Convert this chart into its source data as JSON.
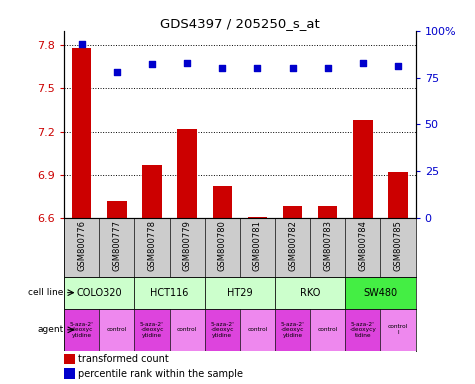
{
  "title": "GDS4397 / 205250_s_at",
  "samples": [
    "GSM800776",
    "GSM800777",
    "GSM800778",
    "GSM800779",
    "GSM800780",
    "GSM800781",
    "GSM800782",
    "GSM800783",
    "GSM800784",
    "GSM800785"
  ],
  "bar_values": [
    7.78,
    6.72,
    6.97,
    7.22,
    6.82,
    6.61,
    6.68,
    6.68,
    7.28,
    6.92
  ],
  "dot_values": [
    93,
    78,
    82,
    83,
    80,
    80,
    80,
    80,
    83,
    81
  ],
  "ylim_left": [
    6.6,
    7.9
  ],
  "ylim_right": [
    0,
    100
  ],
  "yticks_left": [
    6.6,
    6.9,
    7.2,
    7.5,
    7.8
  ],
  "yticks_right": [
    0,
    25,
    50,
    75,
    100
  ],
  "bar_color": "#cc0000",
  "dot_color": "#0000cc",
  "cell_lines": [
    {
      "label": "COLO320",
      "start": 0,
      "end": 2,
      "color": "#ccffcc"
    },
    {
      "label": "HCT116",
      "start": 2,
      "end": 4,
      "color": "#ccffcc"
    },
    {
      "label": "HT29",
      "start": 4,
      "end": 6,
      "color": "#ccffcc"
    },
    {
      "label": "RKO",
      "start": 6,
      "end": 8,
      "color": "#ccffcc"
    },
    {
      "label": "SW480",
      "start": 8,
      "end": 10,
      "color": "#44ee44"
    }
  ],
  "agents": [
    {
      "label": "5-aza-2'\n-deoxyc\nytidine",
      "start": 0,
      "end": 1,
      "color": "#dd44dd"
    },
    {
      "label": "control",
      "start": 1,
      "end": 2,
      "color": "#ee88ee"
    },
    {
      "label": "5-aza-2'\n-deoxyc\nytidine",
      "start": 2,
      "end": 3,
      "color": "#dd44dd"
    },
    {
      "label": "control",
      "start": 3,
      "end": 4,
      "color": "#ee88ee"
    },
    {
      "label": "5-aza-2'\n-deoxyc\nytidine",
      "start": 4,
      "end": 5,
      "color": "#dd44dd"
    },
    {
      "label": "control",
      "start": 5,
      "end": 6,
      "color": "#ee88ee"
    },
    {
      "label": "5-aza-2'\n-deoxyc\nytidine",
      "start": 6,
      "end": 7,
      "color": "#dd44dd"
    },
    {
      "label": "control",
      "start": 7,
      "end": 8,
      "color": "#ee88ee"
    },
    {
      "label": "5-aza-2'\n-deoxycy\ntidine",
      "start": 8,
      "end": 9,
      "color": "#dd44dd"
    },
    {
      "label": "control\nl",
      "start": 9,
      "end": 10,
      "color": "#ee88ee"
    }
  ],
  "legend_bar_label": "transformed count",
  "legend_dot_label": "percentile rank within the sample",
  "cell_line_label": "cell line",
  "agent_label": "agent",
  "background_color": "#ffffff",
  "gsm_bgcolor": "#cccccc"
}
